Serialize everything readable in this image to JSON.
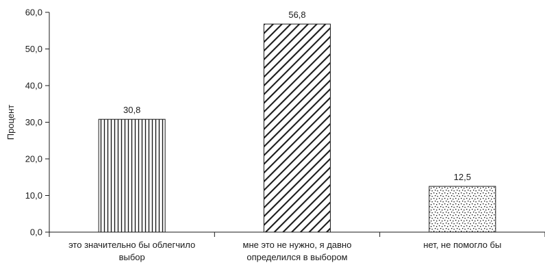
{
  "chart_data": {
    "type": "bar",
    "title": "",
    "xlabel": "",
    "ylabel": "Процент",
    "ylim": [
      0,
      60
    ],
    "ytick_step": 10,
    "ytick_labels": [
      "0,0",
      "10,0",
      "20,0",
      "30,0",
      "40,0",
      "50,0",
      "60,0"
    ],
    "grid": false,
    "legend": "none",
    "categories": [
      [
        "это значительно бы облегчило",
        "выбор"
      ],
      [
        "мне это не нужно, я давно",
        "определился в выбором"
      ],
      [
        "нет, не помогло бы"
      ]
    ],
    "values": [
      30.8,
      56.8,
      12.5
    ],
    "data_labels": [
      "30,8",
      "56,8",
      "12,5"
    ],
    "bar_patterns": [
      "vertical-lines",
      "diagonal-lines",
      "dots"
    ],
    "colors": {
      "ink": "#1a1a1a",
      "background": "#ffffff"
    }
  }
}
